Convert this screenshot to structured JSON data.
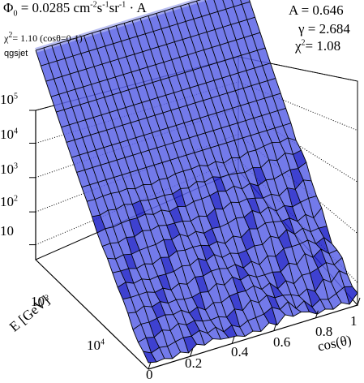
{
  "header": {
    "flux_symbol": "Φ",
    "flux_sub": "0",
    "flux_value": " = 0.0285 cm",
    "flux_unit_exp1": "-2",
    "flux_s": "s",
    "flux_unit_exp2": "-1",
    "flux_sr": "sr",
    "flux_unit_exp3": "-1",
    "flux_tail": " · A",
    "chi_range_symbol": "χ",
    "chi_range_exp": "2",
    "chi_range_text": "= 1.10 (cosθ=0-1)",
    "model": "qgsjet",
    "A_text": "A = 0.646",
    "gamma_text": "γ = 2.684",
    "chi_symbol": "χ",
    "chi_exp": "2",
    "chi_text": "=  1.08"
  },
  "colors": {
    "surface_fill": "#5a63e6",
    "surface_light": "#aab0f0",
    "surface_dark": "#1c20c8",
    "grid_line": "#000000",
    "axis_line": "#000000",
    "dotted_grid": "#000000"
  },
  "chart_data": {
    "type": "surface",
    "title": "",
    "zaxis": {
      "scale": "log",
      "tick_labels": [
        "10",
        "10 2",
        "10 3",
        "10 4",
        "10 5"
      ],
      "tick_values": [
        10,
        100,
        1000,
        10000,
        100000
      ]
    },
    "energy_axis": {
      "label": "E [GeV]",
      "scale": "log",
      "tick_labels": [
        "10 3",
        "10 4"
      ],
      "tick_values": [
        1000,
        10000
      ]
    },
    "cos_axis": {
      "label": "cos(θ)",
      "range": [
        0,
        1
      ],
      "tick_labels": [
        "0",
        "0.2",
        "0.4",
        "0.6",
        "0.8",
        "1"
      ],
      "tick_values": [
        0,
        0.2,
        0.4,
        0.6,
        0.8,
        1
      ]
    },
    "grid": true
  }
}
